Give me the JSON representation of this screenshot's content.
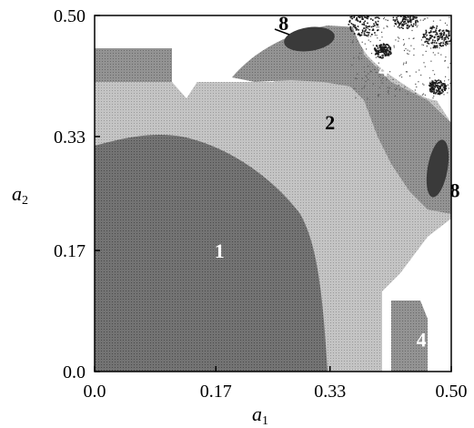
{
  "chart_data": {
    "type": "heatmap",
    "title": "",
    "xlabel": "a",
    "xlabel_sub": "1",
    "ylabel": "a",
    "ylabel_sub": "2",
    "xlim": [
      0.0,
      0.5
    ],
    "ylim": [
      0.0,
      0.5
    ],
    "x_ticks": [
      {
        "value": 0.0,
        "label": "0.0"
      },
      {
        "value": 0.17,
        "label": "0.17"
      },
      {
        "value": 0.33,
        "label": "0.33"
      },
      {
        "value": 0.5,
        "label": "0.50"
      }
    ],
    "y_ticks": [
      {
        "value": 0.0,
        "label": "0.0"
      },
      {
        "value": 0.17,
        "label": "0.17"
      },
      {
        "value": 0.33,
        "label": "0.33"
      },
      {
        "value": 0.5,
        "label": "0.50"
      }
    ],
    "regions": [
      {
        "label": "1",
        "period": 1,
        "color": "#6f6f6f",
        "label_at": [
          0.175,
          0.16
        ],
        "label_color": "#ffffff"
      },
      {
        "label": "2",
        "period": 2,
        "color": "#bdbdbd",
        "label_at": [
          0.33,
          0.34
        ],
        "label_color": "#000000"
      },
      {
        "label": "4",
        "period": 4,
        "color": "#8e8e8e",
        "label_at": [
          0.05,
          0.455
        ],
        "label_color": "#ffffff"
      },
      {
        "label": "4",
        "period": 4,
        "color": "#8e8e8e",
        "label_at": [
          0.405,
          0.415
        ],
        "label_color": "#ffffff"
      },
      {
        "label": "4",
        "period": 4,
        "color": "#8e8e8e",
        "label_at": [
          0.458,
          0.035
        ],
        "label_color": "#ffffff"
      },
      {
        "label": "8",
        "period": 8,
        "color": "#3a3a3a",
        "label_at": [
          0.265,
          0.505
        ],
        "label_color": "#000000"
      },
      {
        "label": "8",
        "period": 8,
        "color": "#3a3a3a",
        "label_at": [
          0.525,
          0.245
        ],
        "label_color": "#000000"
      }
    ],
    "chaotic_color": "#1a1a1a",
    "background_color": "#ffffff",
    "grid": false,
    "legend": "none"
  }
}
